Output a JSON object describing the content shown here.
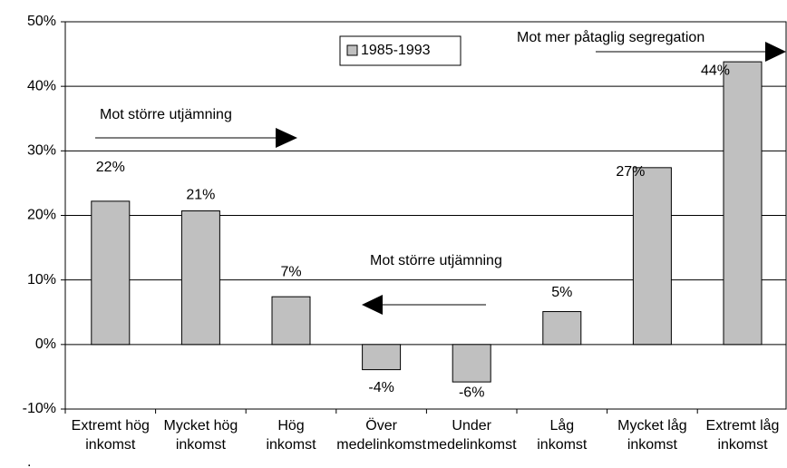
{
  "chart_data": {
    "type": "bar",
    "categories": [
      [
        "Extremt hög",
        "inkomst"
      ],
      [
        "Mycket hög",
        "inkomst"
      ],
      [
        "Hög",
        "inkomst"
      ],
      [
        "Över",
        "medelinkomst"
      ],
      [
        "Under",
        "medelinkomst"
      ],
      [
        "Låg",
        "inkomst"
      ],
      [
        "Mycket låg",
        "inkomst"
      ],
      [
        "Extremt låg",
        "inkomst"
      ]
    ],
    "series": [
      {
        "name": "1985-1993",
        "color": "#c0c0c0",
        "values": [
          22.2,
          20.7,
          7.4,
          -3.9,
          -5.8,
          5.1,
          27.4,
          43.8
        ],
        "value_labels": [
          "22%",
          "21%",
          "7%",
          "-4%",
          "-6%",
          "5%",
          "27%",
          "44%"
        ]
      }
    ],
    "ylim": [
      -10,
      50
    ],
    "yticks": [
      {
        "value": -10,
        "label": "-10%"
      },
      {
        "value": 0,
        "label": "0%"
      },
      {
        "value": 10,
        "label": "10%"
      },
      {
        "value": 20,
        "label": "20%"
      },
      {
        "value": 30,
        "label": "30%"
      },
      {
        "value": 40,
        "label": "40%"
      },
      {
        "value": 50,
        "label": "50%"
      }
    ],
    "grid": true,
    "annotations": [
      "Mot större utjämning",
      "Mot större utjämning",
      "Mot mer påtaglig segregation"
    ],
    "footnote": "."
  }
}
